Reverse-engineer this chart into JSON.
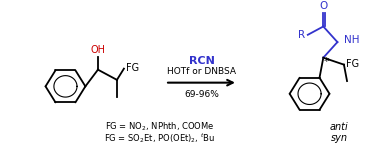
{
  "background_color": "#ffffff",
  "fig_width": 3.78,
  "fig_height": 1.5,
  "dpi": 100,
  "reagent_color": "#3333cc",
  "oh_color": "#cc0000",
  "structure_color": "#000000",
  "arrow_color": "#000000",
  "text_above_arrow_1": "RCN",
  "text_above_arrow_2": "HOTf or DNBSA",
  "text_below_arrow": "69-96%",
  "stereo_label_1": "anti",
  "stereo_label_2": "syn"
}
